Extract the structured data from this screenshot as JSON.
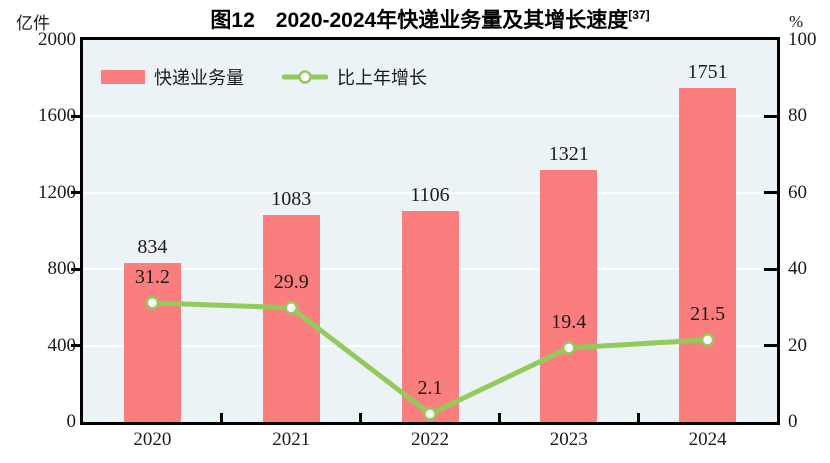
{
  "header": {
    "title": "图12　2020-2024年快递业务量及其增长速度",
    "title_ref": "[37]",
    "left_unit": "亿件",
    "right_unit": "%"
  },
  "legend": [
    {
      "label": "快递业务量",
      "type": "bar"
    },
    {
      "label": "比上年增长",
      "type": "line"
    }
  ],
  "colors": {
    "bar": "#FB7E7E",
    "line": "#92CB5B",
    "marker_fill": "#FFFFFF",
    "plot_bg": "#ECF3F6",
    "gridline": "#FFFFFF",
    "axis": "#000000",
    "text": "#1B1B1B"
  },
  "chart_data": {
    "type": "bar+line",
    "title": "图12　2020-2024年快递业务量及其增长速度[37]",
    "categories": [
      "2020",
      "2021",
      "2022",
      "2023",
      "2024"
    ],
    "series": [
      {
        "name": "快递业务量",
        "type": "bar",
        "axis": "left",
        "values": [
          834,
          1083,
          1106,
          1321,
          1751
        ]
      },
      {
        "name": "比上年增长",
        "type": "line",
        "axis": "right",
        "values": [
          31.2,
          29.9,
          2.1,
          19.4,
          21.5
        ]
      }
    ],
    "left_axis": {
      "label": "亿件",
      "min": 0,
      "max": 2000,
      "ticks": [
        0,
        400,
        800,
        1200,
        1600,
        2000
      ]
    },
    "right_axis": {
      "label": "%",
      "min": 0,
      "max": 100,
      "ticks": [
        0,
        20,
        40,
        60,
        80,
        100
      ]
    },
    "grid": true,
    "data_labels": true,
    "legend_position": "top-left-inside"
  }
}
